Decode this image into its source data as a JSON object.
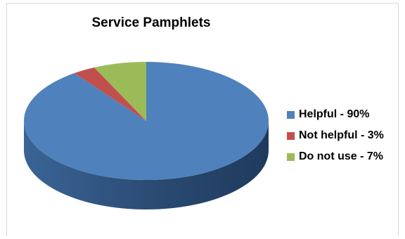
{
  "chart_data": {
    "type": "pie",
    "title": "Service Pamphlets",
    "categories": [
      "Helpful",
      "Not helpful",
      "Do not use"
    ],
    "values": [
      90,
      3,
      7
    ],
    "labels": [
      "Helpful - 90%",
      "Not helpful - 3%",
      "Do not use - 7%"
    ],
    "colors": [
      "#4F81BD",
      "#C0504D",
      "#9BBB59"
    ],
    "style": "3d",
    "legend_position": "right"
  }
}
